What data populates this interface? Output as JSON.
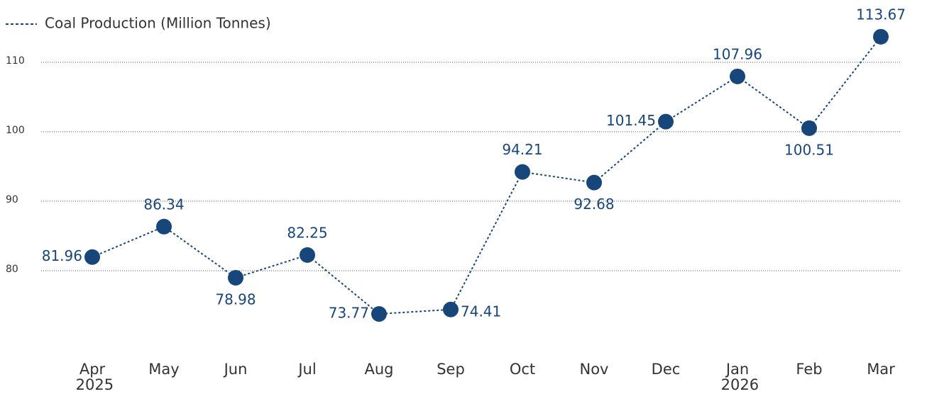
{
  "chart_data": {
    "type": "line",
    "categories": [
      "Apr 2025",
      "May",
      "Jun",
      "Jul",
      "Aug",
      "Sep",
      "Oct",
      "Nov",
      "Dec",
      "Jan 2026",
      "Feb",
      "Mar"
    ],
    "series": [
      {
        "name": "Coal Production (Million Tonnes)",
        "color": "#17467a",
        "values": [
          81.96,
          86.34,
          78.98,
          82.25,
          73.77,
          74.41,
          94.21,
          92.68,
          101.45,
          107.96,
          100.51,
          113.67
        ]
      }
    ],
    "ylim": [
      70,
      116
    ],
    "yticks": [
      80,
      90,
      100,
      110
    ],
    "grid": true,
    "legend": "top-left"
  }
}
